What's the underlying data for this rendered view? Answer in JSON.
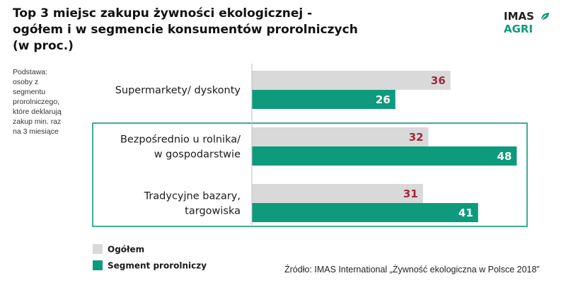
{
  "title": {
    "lines": [
      "Top 3 miejsc zakupu żywności ekologicznej  -",
      "ogółem i w segmencie konsumentów prorolniczych",
      "(w proc.)"
    ]
  },
  "logo": {
    "line1": "IMAS",
    "line2": "AGRI",
    "icon": "leaf-icon",
    "accent": "#0e9a7c"
  },
  "basis": {
    "lines": [
      "Podstawa:",
      "osoby z",
      "segmentu",
      "prorolniczego,",
      "które deklarują",
      "zakup min. raz",
      "na 3 miesiące"
    ]
  },
  "chart_data": {
    "type": "bar",
    "orientation": "horizontal",
    "categories": [
      [
        "Supermarkety/ dyskonty"
      ],
      [
        "Bezpośrednio u rolnika/",
        "w gospodarstwie"
      ],
      [
        "Tradycyjne bazary,",
        "targowiska"
      ]
    ],
    "series": [
      {
        "name": "Ogółem",
        "values": [
          36,
          32,
          31
        ],
        "color": "#d9d9d9",
        "label_color": "#a3283a"
      },
      {
        "name": "Segment prorolniczy",
        "values": [
          26,
          48,
          41
        ],
        "color": "#0e9a7c",
        "label_color": "#ffffff"
      }
    ],
    "xlim": [
      0,
      50
    ],
    "grid": false,
    "highlighted_categories": [
      1,
      2
    ],
    "highlight_color": "#0e9a7c",
    "legend": "bottom-left"
  },
  "source": "Źródło: IMAS International „Żywność ekologiczna w Polsce 2018”"
}
